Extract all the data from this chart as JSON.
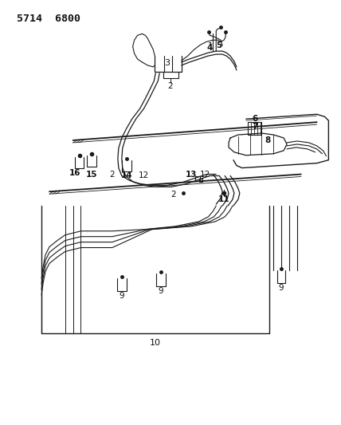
{
  "title": "5714  6800",
  "bg_color": "#ffffff",
  "line_color": "#1a1a1a",
  "label_color": "#111111",
  "fig_width": 4.28,
  "fig_height": 5.33,
  "dpi": 100
}
